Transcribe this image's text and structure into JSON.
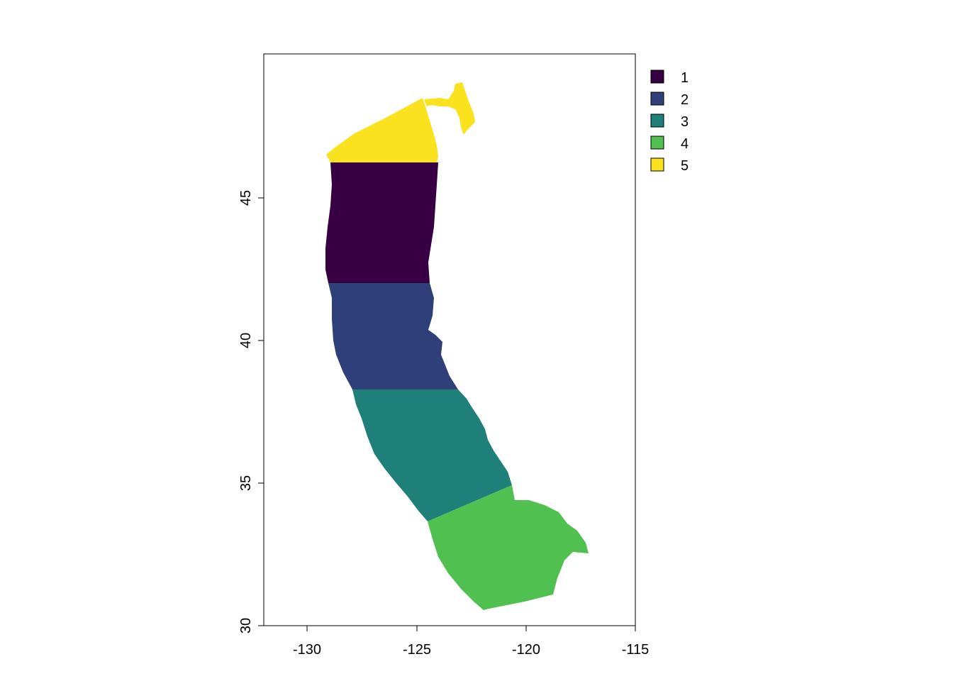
{
  "map": {
    "x_ticks": [
      "-130",
      "-125",
      "-120",
      "-115"
    ],
    "y_ticks": [
      "30",
      "35",
      "40",
      "45"
    ],
    "xlim": [
      -132,
      -115
    ],
    "ylim": [
      30,
      49.9
    ]
  },
  "legend": {
    "items": [
      {
        "label": "1",
        "color": "#360042"
      },
      {
        "label": "2",
        "color": "#2E3F79"
      },
      {
        "label": "3",
        "color": "#1F7F79"
      },
      {
        "label": "4",
        "color": "#50C050"
      },
      {
        "label": "5",
        "color": "#FAE31E"
      }
    ]
  },
  "regions": [
    {
      "zone": "5",
      "color": "#FAE31E"
    },
    {
      "zone": "1",
      "color": "#360042"
    },
    {
      "zone": "2",
      "color": "#2E3F79"
    },
    {
      "zone": "3",
      "color": "#1F7F79"
    },
    {
      "zone": "4",
      "color": "#50C050"
    }
  ]
}
